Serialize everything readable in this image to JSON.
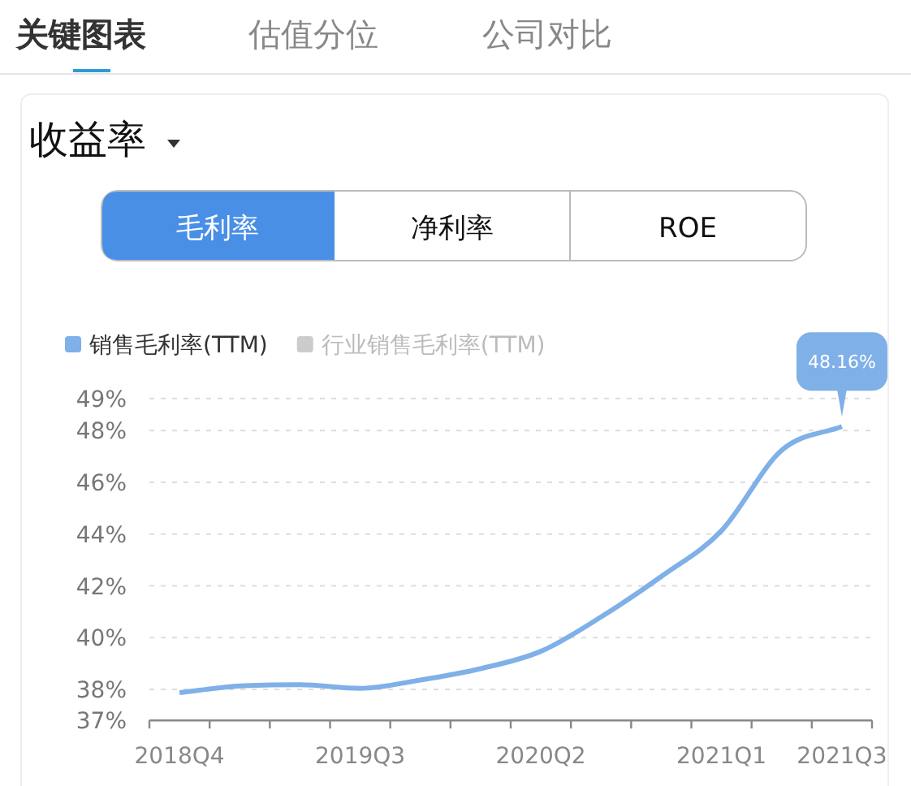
{
  "chart_data": {
    "type": "line",
    "title": "收益率",
    "annotations": [
      "关键图表",
      "估值分位",
      "公司对比",
      "毛利率",
      "净利率",
      "ROE"
    ],
    "categories": [
      "2018Q4",
      null,
      null,
      "2019Q3",
      null,
      null,
      "2020Q2",
      null,
      null,
      "2021Q1",
      null,
      "2021Q3"
    ],
    "series": [
      {
        "name": "销售毛利率(TTM)",
        "color": "#7fb0e8",
        "values": [
          37.87,
          38.13,
          38.18,
          38.04,
          38.36,
          38.8,
          39.47,
          40.8,
          42.36,
          44.13,
          47.24,
          48.16
        ],
        "value_labels": [
          null,
          null,
          null,
          null,
          null,
          null,
          null,
          null,
          null,
          null,
          null,
          "48.16%"
        ]
      },
      {
        "name": "行业销售毛利率(TTM)",
        "color": "#cccccc",
        "values": [
          null,
          null,
          null,
          null,
          null,
          null,
          null,
          null,
          null,
          null,
          null,
          null
        ]
      }
    ],
    "ylim": [
      36.8,
      49.24
    ],
    "yticks": [
      {
        "value": 36.8,
        "label": "37%"
      },
      {
        "value": 38,
        "label": "38%"
      },
      {
        "value": 40,
        "label": "40%"
      },
      {
        "value": 42,
        "label": "42%"
      },
      {
        "value": 44,
        "label": "44%"
      },
      {
        "value": 46,
        "label": "46%"
      },
      {
        "value": 48,
        "label": "48%"
      },
      {
        "value": 49.24,
        "label": "49%"
      }
    ],
    "grid": "y",
    "legend": "top left",
    "marker": "none",
    "line_style": "solid"
  }
}
